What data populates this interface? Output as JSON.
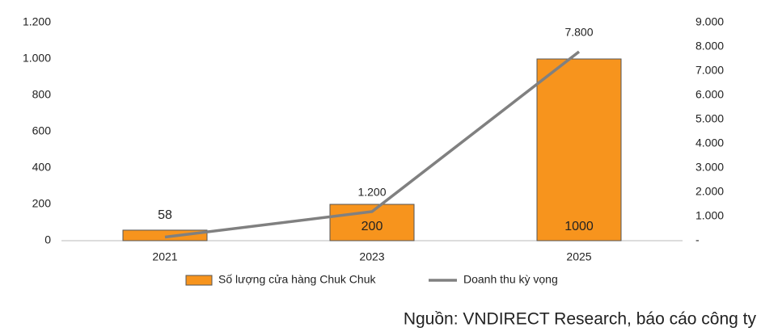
{
  "chart_data": {
    "type": "bar_line",
    "categories": [
      "2021",
      "2023",
      "2025"
    ],
    "series": [
      {
        "name": "Số lượng cửa hàng Chuk Chuk",
        "type": "bar",
        "color": "#f7941d",
        "values": [
          58,
          200,
          1000
        ]
      },
      {
        "name": "Doanh thu kỳ vọng",
        "type": "line",
        "axis": "y2",
        "color": "#808080",
        "values": [
          150,
          1200,
          7800
        ],
        "value_labels": [
          null,
          "1.200",
          "7.800"
        ]
      }
    ],
    "ylim": [
      0,
      1200
    ],
    "yticks": [
      0,
      200,
      400,
      600,
      800,
      {
        "value": 1000,
        "label": "1.000"
      },
      {
        "value": 1200,
        "label": "1.200"
      }
    ],
    "y2lim": [
      0,
      9000
    ],
    "y2ticks": [
      {
        "value": 0,
        "label": "-"
      },
      {
        "value": 1000,
        "label": "1.000"
      },
      {
        "value": 2000,
        "label": "2.000"
      },
      {
        "value": 3000,
        "label": "3.000"
      },
      {
        "value": 4000,
        "label": "4.000"
      },
      {
        "value": 5000,
        "label": "5.000"
      },
      {
        "value": 6000,
        "label": "6.000"
      },
      {
        "value": 7000,
        "label": "7.000"
      },
      {
        "value": 8000,
        "label": "8.000"
      },
      {
        "value": 9000,
        "label": "9.000"
      }
    ],
    "grid": false,
    "legend": "bottom",
    "source": "Nguồn: VNDIRECT Research, báo cáo công ty"
  }
}
